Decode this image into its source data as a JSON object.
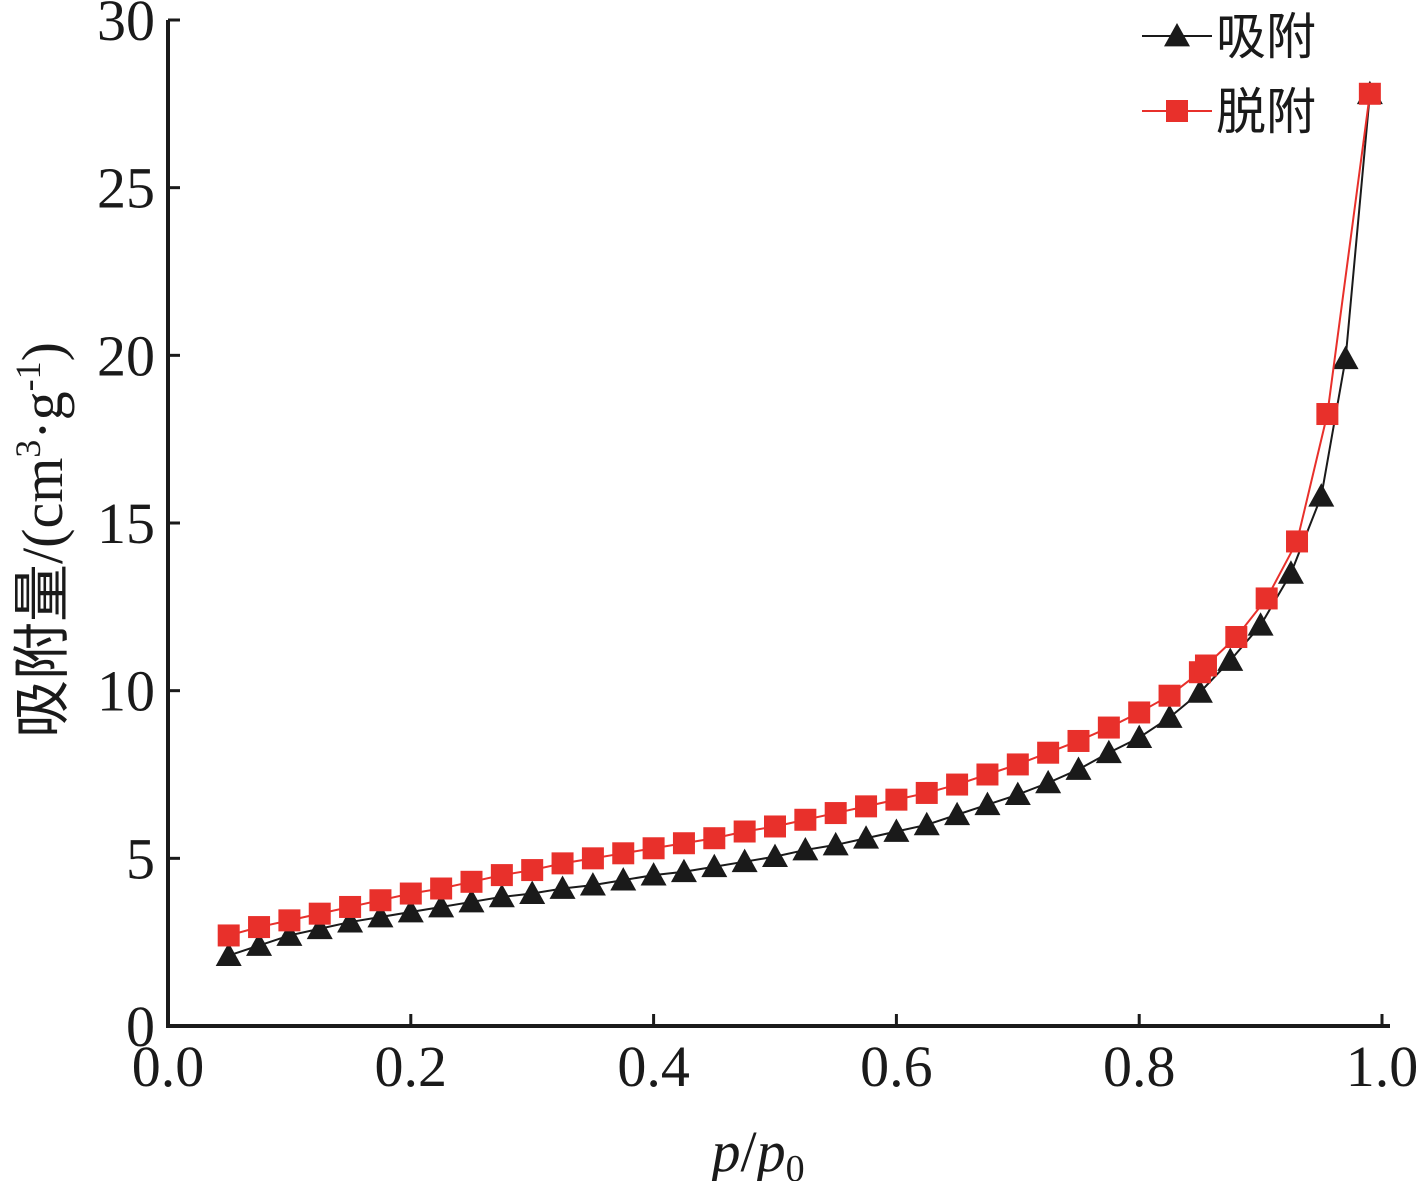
{
  "chart_data": {
    "type": "line",
    "xlabel_parts": {
      "p": "p",
      "slash": "/",
      "p0": "p",
      "sub0": "0"
    },
    "ylabel_parts": {
      "main": "吸附量/(cm",
      "sup3": "3",
      "dot_g": "·g",
      "supm1": "-1",
      "close": ")"
    },
    "xlim": [
      0.0,
      1.0
    ],
    "ylim": [
      0,
      30
    ],
    "xticks": [
      "0.0",
      "0.2",
      "0.4",
      "0.6",
      "0.8",
      "1.0"
    ],
    "yticks": [
      "0",
      "5",
      "10",
      "15",
      "20",
      "25",
      "30"
    ],
    "grid": false,
    "legend_position": "top-right",
    "series": [
      {
        "name": "吸附",
        "color": "#1a1a1a",
        "marker": "triangle",
        "x": [
          0.05,
          0.075,
          0.1,
          0.125,
          0.15,
          0.175,
          0.2,
          0.225,
          0.25,
          0.275,
          0.3,
          0.325,
          0.35,
          0.375,
          0.4,
          0.425,
          0.45,
          0.475,
          0.5,
          0.525,
          0.55,
          0.575,
          0.6,
          0.625,
          0.65,
          0.675,
          0.7,
          0.725,
          0.75,
          0.775,
          0.8,
          0.825,
          0.85,
          0.875,
          0.9,
          0.925,
          0.95,
          0.97,
          0.99
        ],
        "y": [
          2.1,
          2.4,
          2.7,
          2.9,
          3.1,
          3.25,
          3.4,
          3.55,
          3.7,
          3.85,
          3.95,
          4.1,
          4.2,
          4.35,
          4.5,
          4.6,
          4.75,
          4.9,
          5.05,
          5.25,
          5.4,
          5.6,
          5.8,
          6.0,
          6.3,
          6.6,
          6.9,
          7.25,
          7.65,
          8.15,
          8.6,
          9.2,
          9.95,
          10.9,
          11.95,
          13.5,
          15.8,
          19.9,
          27.8
        ]
      },
      {
        "name": "脱附",
        "color": "#e8302b",
        "marker": "square",
        "x": [
          0.05,
          0.075,
          0.1,
          0.125,
          0.15,
          0.175,
          0.2,
          0.225,
          0.25,
          0.275,
          0.3,
          0.325,
          0.35,
          0.375,
          0.4,
          0.425,
          0.45,
          0.475,
          0.5,
          0.525,
          0.55,
          0.575,
          0.6,
          0.625,
          0.65,
          0.675,
          0.7,
          0.725,
          0.75,
          0.775,
          0.8,
          0.825,
          0.85,
          0.855,
          0.88,
          0.905,
          0.93,
          0.955,
          0.99
        ],
        "y": [
          2.7,
          2.95,
          3.15,
          3.35,
          3.55,
          3.75,
          3.95,
          4.1,
          4.3,
          4.5,
          4.65,
          4.85,
          5.0,
          5.15,
          5.3,
          5.45,
          5.6,
          5.8,
          5.95,
          6.15,
          6.35,
          6.55,
          6.75,
          6.95,
          7.2,
          7.5,
          7.8,
          8.15,
          8.5,
          8.9,
          9.35,
          9.85,
          10.55,
          10.75,
          11.6,
          12.75,
          14.45,
          18.25,
          27.8
        ]
      }
    ]
  }
}
